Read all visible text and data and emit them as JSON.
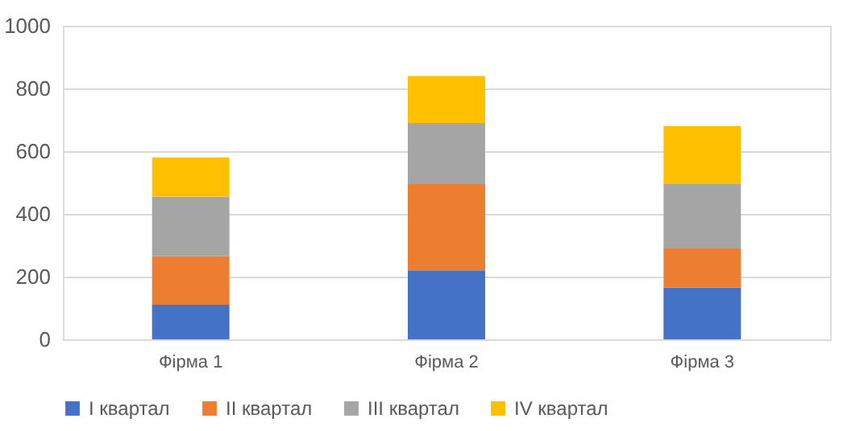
{
  "chart_data": {
    "type": "bar",
    "stacked": true,
    "categories": [
      "Фірма 1",
      "Фірма 2",
      "Фірма 3"
    ],
    "series": [
      {
        "name": "I квартал",
        "color": "#4472c4",
        "values": [
          110,
          220,
          165
        ]
      },
      {
        "name": "II квартал",
        "color": "#ed7d31",
        "values": [
          155,
          275,
          125
        ]
      },
      {
        "name": "III квартал",
        "color": "#a5a5a5",
        "values": [
          190,
          195,
          205
        ]
      },
      {
        "name": "IV квартал",
        "color": "#ffc000",
        "values": [
          125,
          150,
          185
        ]
      }
    ],
    "ylim": [
      0,
      1000
    ],
    "yticks": [
      0,
      200,
      400,
      600,
      800,
      1000
    ],
    "grid": "y",
    "legend": "bottom"
  }
}
